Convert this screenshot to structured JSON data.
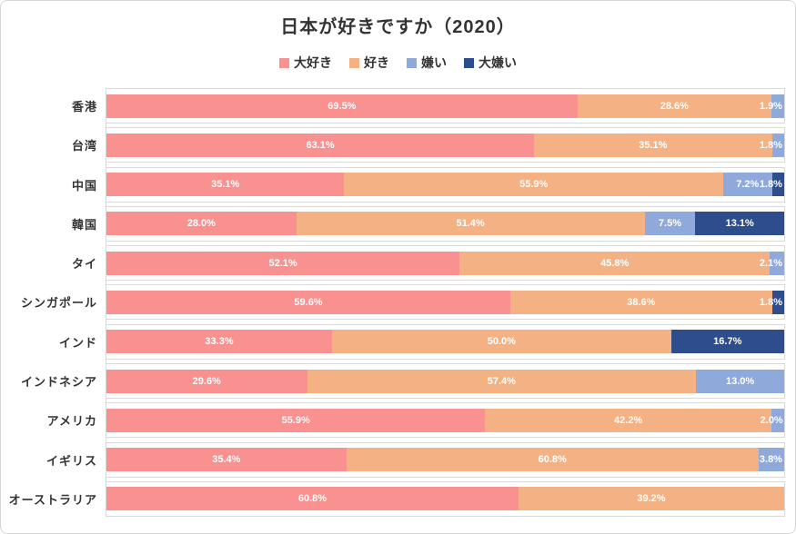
{
  "title": "日本が好きですか（2020）",
  "chart_data": {
    "type": "bar",
    "orientation": "horizontal",
    "stacked": true,
    "title": "日本が好きですか（2020）",
    "value_unit": "%",
    "xlim": [
      0,
      100
    ],
    "legend_position": "top-center",
    "grid": "per-category light gray track boxes, no value axis shown",
    "value_label_format": "one decimal + %, white bold, inside segments",
    "categories": [
      "香港",
      "台湾",
      "中国",
      "韓国",
      "タイ",
      "シンガポール",
      "インド",
      "インドネシア",
      "アメリカ",
      "イギリス",
      "オーストラリア"
    ],
    "series": [
      {
        "name": "大好き",
        "color": "#F8918F",
        "values": [
          69.5,
          63.1,
          35.1,
          28.0,
          52.1,
          59.6,
          33.3,
          29.6,
          55.9,
          35.4,
          60.8
        ]
      },
      {
        "name": "好き",
        "color": "#F4B183",
        "values": [
          28.6,
          35.1,
          55.9,
          51.4,
          45.8,
          38.6,
          50.0,
          57.4,
          42.2,
          60.8,
          39.2
        ]
      },
      {
        "name": "嫌い",
        "color": "#8FA9DB",
        "values": [
          1.9,
          1.8,
          7.2,
          7.5,
          2.1,
          0,
          0,
          13.0,
          2.0,
          3.8,
          0
        ]
      },
      {
        "name": "大嫌い",
        "color": "#2E4D8C",
        "values": [
          0,
          0,
          1.8,
          13.1,
          0,
          1.8,
          16.7,
          0,
          0,
          0,
          0
        ]
      }
    ]
  },
  "style_colors": {
    "canvas_border": "#d6d6d6",
    "track_border": "#d9d9d9",
    "title_text": "#333333",
    "value_label_text": "#ffffff"
  }
}
